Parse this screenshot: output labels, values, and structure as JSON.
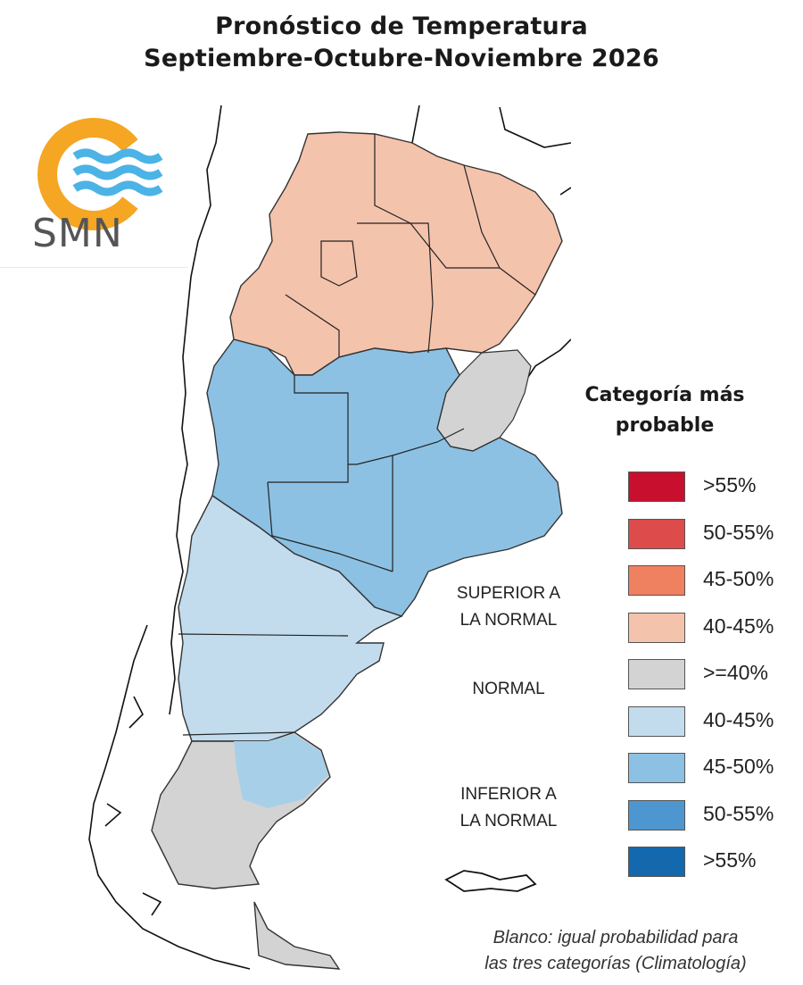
{
  "title_line1": "Pronóstico de Temperatura",
  "title_line2": "Septiembre-Octubre-Noviembre 2026",
  "logo": {
    "text": "SMN",
    "colors": {
      "sun": "#F5A623",
      "waves": "#4BB3E6"
    }
  },
  "legend": {
    "title_line1": "Categoría más",
    "title_line2": "probable",
    "items": [
      {
        "label": ">55%",
        "color": "#C8102E"
      },
      {
        "label": "50-55%",
        "color": "#DD4B4B"
      },
      {
        "label": "45-50%",
        "color": "#EF8060"
      },
      {
        "label": "40-45%",
        "color": "#F4C3AC"
      },
      {
        "label": ">=40%",
        "color": "#D3D3D3"
      },
      {
        "label": "40-45%",
        "color": "#C2DCEE"
      },
      {
        "label": "45-50%",
        "color": "#8CC1E3"
      },
      {
        "label": "50-55%",
        "color": "#4E96CF"
      },
      {
        "label": ">55%",
        "color": "#1468AE"
      }
    ],
    "categories": {
      "superior_line1": "SUPERIOR A",
      "superior_line2": "LA NORMAL",
      "normal": "NORMAL",
      "inferior_line1": "INFERIOR A",
      "inferior_line2": "LA NORMAL"
    }
  },
  "footnote_line1": "Blanco: igual probabilidad para",
  "footnote_line2": "las tres categorías (Climatología)",
  "map_regions": {
    "north": "40-45% superior",
    "litoral_east": "normal",
    "center": "45-50% inferior",
    "patagonia_north": "40-45% inferior",
    "patagonia_south": "normal"
  }
}
